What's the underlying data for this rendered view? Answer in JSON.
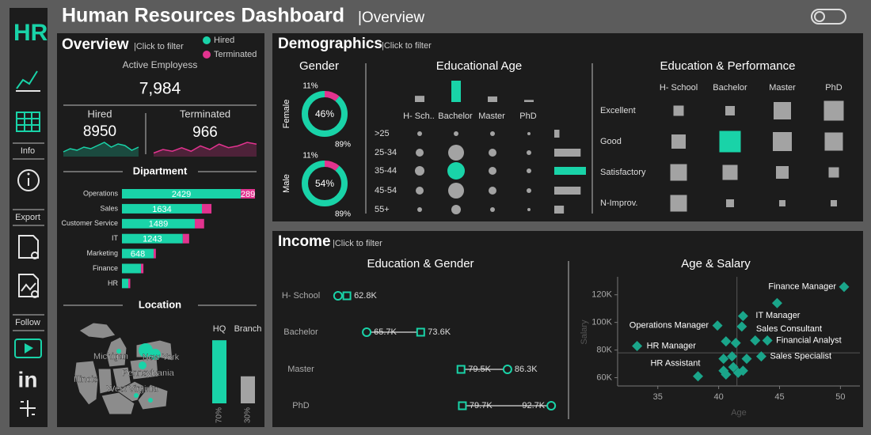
{
  "colors": {
    "accent": "#19d3a8",
    "alert": "#e2338f",
    "muted": "#a3a3a3",
    "point": "#1aa58a"
  },
  "header": {
    "title": "Human Resources Dashboard",
    "subtitle": "|Overview"
  },
  "sidebar": {
    "logo": "HR",
    "sections": [
      "Info",
      "Export",
      "Follow"
    ],
    "social": "in"
  },
  "overview": {
    "title": "Overview",
    "hint": "|Click to filter",
    "legend": [
      {
        "name": "Hired",
        "color": "#19d3a8"
      },
      {
        "name": "Terminated",
        "color": "#e2338f"
      }
    ],
    "active": {
      "label": "Active Employess",
      "value": "7,984"
    },
    "hired": {
      "label": "Hired",
      "value": 8950,
      "trend": [
        3,
        5,
        4,
        6,
        5,
        7,
        9,
        6,
        8,
        7,
        4,
        6
      ]
    },
    "terminated": {
      "label": "Terminated",
      "value": 966,
      "trend": [
        2,
        4,
        3,
        5,
        3,
        6,
        4,
        7,
        5,
        6,
        8,
        7
      ]
    }
  },
  "department": {
    "title": "Dipartment",
    "categories": [
      "Operations",
      "Sales",
      "Customer Service",
      "IT",
      "Marketing",
      "Finance",
      "HR"
    ],
    "hired": [
      2429,
      1634,
      1489,
      1243,
      648,
      389,
      130
    ],
    "terminated": [
      289,
      195,
      190,
      130,
      45,
      50,
      40
    ]
  },
  "location": {
    "title": "Location",
    "places": [
      "Michigan",
      "New York",
      "Illinois",
      "Pennsylvania",
      "West Virginia"
    ],
    "split": {
      "categories": [
        "HQ",
        "Branch"
      ],
      "values": [
        70,
        30
      ],
      "value_labels": [
        "70%",
        "30%"
      ]
    }
  },
  "demographics": {
    "title": "Demographics",
    "hint": "|Click to filter",
    "gender": {
      "title": "Gender",
      "groups": [
        {
          "name": "Female",
          "share": 46,
          "share_label": "46%",
          "parts": [
            11,
            89
          ],
          "part_labels": [
            "11%",
            "89%"
          ]
        },
        {
          "name": "Male",
          "share": 54,
          "share_label": "54%",
          "parts": [
            11,
            89
          ],
          "part_labels": [
            "11%",
            "89%"
          ]
        }
      ]
    },
    "educational_age": {
      "title": "Educational Age",
      "education": [
        "H- Sch..",
        "Bachelor",
        "Master",
        "PhD"
      ],
      "education_totals": [
        1040,
        3570,
        930,
        350
      ],
      "ages": [
        ">25",
        "25-34",
        "35-44",
        "45-54",
        "55+"
      ],
      "age_totals": [
        310,
        1590,
        1910,
        1590,
        580
      ],
      "matrix": [
        [
          90,
          90,
          90,
          40
        ],
        [
          250,
          1000,
          250,
          90
        ],
        [
          360,
          1210,
          250,
          90
        ],
        [
          250,
          1000,
          250,
          90
        ],
        [
          90,
          360,
          90,
          40
        ]
      ]
    },
    "education_performance": {
      "title": "Education & Performance",
      "education": [
        "H- School",
        "Bachelor",
        "Master",
        "PhD"
      ],
      "ratings": [
        "Excellent",
        "Good",
        "Satisfactory",
        "N-Improv."
      ],
      "matrix": [
        [
          169,
          144,
          484,
          625
        ],
        [
          324,
          729,
          576,
          529
        ],
        [
          441,
          361,
          256,
          169
        ],
        [
          441,
          100,
          64,
          64
        ]
      ]
    }
  },
  "income": {
    "title": "Income",
    "hint": "|Click to filter",
    "education_gender": {
      "title": "Education & Gender",
      "education": [
        "H- School",
        "Bachelor",
        "Master",
        "PhD"
      ],
      "xlim": [
        57000,
        95000
      ],
      "series": [
        {
          "marker": "circle",
          "values": [
            61500,
            65700,
            86300,
            92700
          ],
          "value_labels": [
            null,
            "65.7K",
            "86.3K",
            "92.7K"
          ]
        },
        {
          "marker": "square",
          "values": [
            62800,
            73600,
            79500,
            79700
          ],
          "value_labels": [
            "62.8K",
            "73.6K",
            "79.5K",
            "79.7K"
          ]
        }
      ]
    },
    "age_salary": {
      "title": "Age & Salary",
      "x_label": "Age",
      "y_label": "Salary",
      "xlim": [
        31.7,
        51.6
      ],
      "ylim": [
        54000,
        133000
      ],
      "xticks": [
        35,
        40,
        45,
        50
      ],
      "yticks": [
        {
          "value": 60000,
          "label": "60K"
        },
        {
          "value": 80000,
          "label": "80K"
        },
        {
          "value": 100000,
          "label": "100K"
        },
        {
          "value": 120000,
          "label": "120K"
        }
      ],
      "reference": {
        "x": 41.5,
        "y": 78000
      },
      "age": [
        50.3,
        44.8,
        39.9,
        41.9,
        33.3,
        44.0,
        38.3,
        43.5,
        42.0,
        40.6,
        41.4,
        43.0,
        40.4,
        41.1,
        42.3,
        40.4,
        41.2,
        42.0,
        40.6,
        41.6
      ],
      "salary": [
        125700,
        114000,
        97700,
        97000,
        82900,
        86900,
        61000,
        75400,
        104600,
        86300,
        85100,
        86900,
        73700,
        75400,
        73700,
        65000,
        67700,
        65000,
        62300,
        63500
      ],
      "labels": [
        "Finance Manager",
        "IT Manager",
        "Operations Manager",
        "Sales Consultant",
        "HR Manager",
        "Financial Analyst",
        "HR Assistant",
        "Sales Specialist",
        null,
        null,
        null,
        null,
        null,
        null,
        null,
        null,
        null,
        null,
        null,
        null
      ]
    }
  }
}
